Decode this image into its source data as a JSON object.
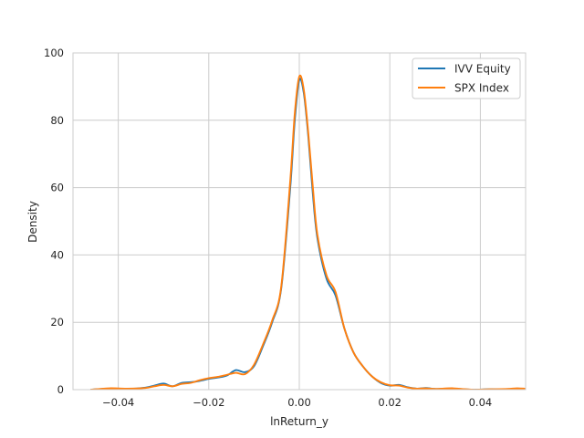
{
  "chart_data": {
    "type": "line",
    "title": "",
    "xlabel": "lnReturn_y",
    "ylabel": "Density",
    "xlim": [
      -0.05,
      0.05
    ],
    "ylim": [
      0,
      100
    ],
    "grid": true,
    "legend_position": "top-right",
    "xticks": [
      -0.04,
      -0.02,
      0.0,
      0.02,
      0.04
    ],
    "xtick_labels": [
      "−0.04",
      "−0.02",
      "0.00",
      "0.02",
      "0.04"
    ],
    "yticks": [
      0,
      20,
      40,
      60,
      80,
      100
    ],
    "ytick_labels": [
      "0",
      "20",
      "40",
      "60",
      "80",
      "100"
    ],
    "series": [
      {
        "name": "IVV Equity",
        "color": "#1f77b4",
        "x": [
          -0.046,
          -0.042,
          -0.038,
          -0.034,
          -0.032,
          -0.03,
          -0.028,
          -0.026,
          -0.024,
          -0.022,
          -0.02,
          -0.018,
          -0.016,
          -0.014,
          -0.012,
          -0.01,
          -0.008,
          -0.006,
          -0.004,
          -0.002,
          -0.001,
          0.0,
          0.001,
          0.002,
          0.003,
          0.004,
          0.006,
          0.008,
          0.01,
          0.012,
          0.014,
          0.016,
          0.018,
          0.02,
          0.022,
          0.024,
          0.026,
          0.028,
          0.03,
          0.034,
          0.038,
          0.042,
          0.046,
          0.048,
          0.05
        ],
        "y": [
          0.0,
          0.3,
          0.2,
          0.6,
          1.2,
          1.8,
          1.0,
          2.0,
          2.2,
          2.6,
          3.2,
          3.6,
          4.2,
          5.8,
          5.2,
          7.0,
          13.0,
          20.0,
          30.0,
          60.0,
          80.0,
          92.0,
          88.0,
          75.0,
          58.0,
          45.0,
          33.0,
          28.0,
          18.0,
          11.0,
          7.0,
          4.0,
          2.0,
          1.2,
          1.4,
          0.7,
          0.3,
          0.5,
          0.2,
          0.3,
          0.0,
          0.1,
          0.1,
          0.3,
          0.2
        ]
      },
      {
        "name": "SPX Index",
        "color": "#ff7f0e",
        "x": [
          -0.046,
          -0.042,
          -0.038,
          -0.034,
          -0.032,
          -0.03,
          -0.028,
          -0.026,
          -0.024,
          -0.022,
          -0.02,
          -0.018,
          -0.016,
          -0.014,
          -0.012,
          -0.01,
          -0.008,
          -0.006,
          -0.004,
          -0.002,
          -0.001,
          0.0,
          0.001,
          0.002,
          0.003,
          0.004,
          0.006,
          0.008,
          0.01,
          0.012,
          0.014,
          0.016,
          0.018,
          0.02,
          0.022,
          0.024,
          0.026,
          0.028,
          0.03,
          0.034,
          0.038,
          0.042,
          0.046,
          0.048,
          0.05
        ],
        "y": [
          0.0,
          0.4,
          0.3,
          0.5,
          1.0,
          1.4,
          1.0,
          1.7,
          2.0,
          2.8,
          3.4,
          3.8,
          4.4,
          5.0,
          4.6,
          7.4,
          13.5,
          20.5,
          30.5,
          62.0,
          82.0,
          93.0,
          89.0,
          76.0,
          60.0,
          46.0,
          34.0,
          29.0,
          18.0,
          11.0,
          7.0,
          4.0,
          2.2,
          1.3,
          1.2,
          0.6,
          0.3,
          0.4,
          0.2,
          0.4,
          0.0,
          0.1,
          0.2,
          0.4,
          0.3
        ]
      }
    ]
  }
}
